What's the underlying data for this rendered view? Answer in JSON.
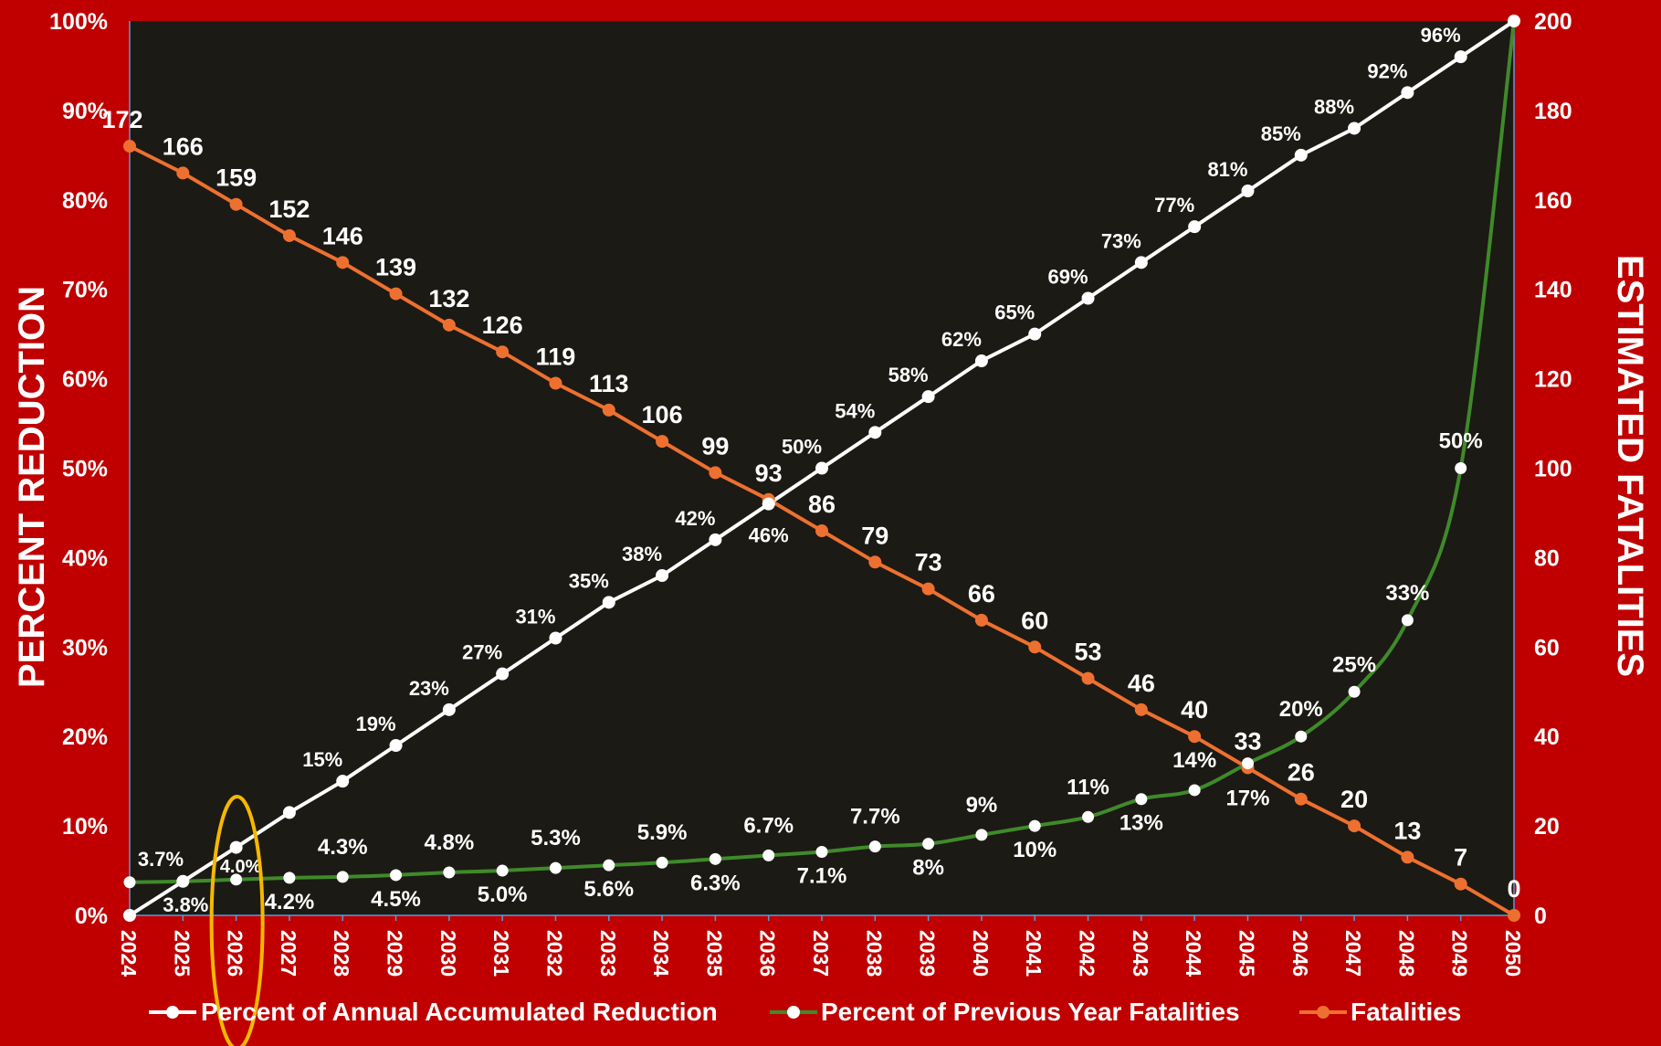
{
  "colors": {
    "background": "#c00000",
    "plot_area": "#1c1a14",
    "accumulated": "#ffffff",
    "previous": "#3f8a2a",
    "fatalities": "#ee7030",
    "highlight": "#f5b800",
    "axis_text": "#ffffff"
  },
  "chart_data": {
    "type": "line",
    "title": "",
    "x": [
      2024,
      2025,
      2026,
      2027,
      2028,
      2029,
      2030,
      2031,
      2032,
      2033,
      2034,
      2035,
      2036,
      2037,
      2038,
      2039,
      2040,
      2041,
      2042,
      2043,
      2044,
      2045,
      2046,
      2047,
      2048,
      2049,
      2050
    ],
    "y_left": {
      "label": "PERCENT REDUCTION",
      "range": [
        0,
        100
      ],
      "ticks": [
        "0%",
        "10%",
        "20%",
        "30%",
        "40%",
        "50%",
        "60%",
        "70%",
        "80%",
        "90%",
        "100%"
      ]
    },
    "y_right": {
      "label": "ESTIMATED FATALITIES",
      "range": [
        0,
        200
      ],
      "ticks": [
        "0",
        "20",
        "40",
        "60",
        "80",
        "100",
        "120",
        "140",
        "160",
        "180",
        "200"
      ]
    },
    "series": [
      {
        "name": "Percent of Annual Accumulated Reduction",
        "axis": "left",
        "color": "#ffffff",
        "values": [
          0,
          3.8,
          7.6,
          11.5,
          15,
          19,
          23,
          27,
          31,
          35,
          38,
          42,
          46,
          50,
          54,
          58,
          62,
          65,
          69,
          73,
          77,
          81,
          85,
          88,
          92,
          96,
          100
        ],
        "labels": [
          "",
          "3.8%",
          "",
          "",
          "15%",
          "19%",
          "23%",
          "27%",
          "31%",
          "35%",
          "38%",
          "42%",
          "46%",
          "50%",
          "54%",
          "58%",
          "62%",
          "65%",
          "69%",
          "73%",
          "77%",
          "81%",
          "85%",
          "88%",
          "92%",
          "96%",
          ""
        ]
      },
      {
        "name": "Percent of Previous Year Fatalities",
        "axis": "left",
        "color": "#3f8a2a",
        "values": [
          3.7,
          3.8,
          4.0,
          4.2,
          4.3,
          4.5,
          4.8,
          5.0,
          5.3,
          5.6,
          5.9,
          6.3,
          6.7,
          7.1,
          7.7,
          8,
          9,
          10,
          11,
          13,
          14,
          17,
          20,
          25,
          33,
          50,
          100
        ],
        "labels": [
          "3.7%",
          "",
          "4.0%",
          "4.2%",
          "4.3%",
          "4.5%",
          "4.8%",
          "5.0%",
          "5.3%",
          "5.6%",
          "5.9%",
          "6.3%",
          "6.7%",
          "7.1%",
          "7.7%",
          "8%",
          "9%",
          "10%",
          "11%",
          "13%",
          "14%",
          "17%",
          "20%",
          "25%",
          "33%",
          "50%",
          ""
        ]
      },
      {
        "name": "Fatalities",
        "axis": "right",
        "color": "#ee7030",
        "values": [
          172,
          166,
          159,
          152,
          146,
          139,
          132,
          126,
          119,
          113,
          106,
          99,
          93,
          86,
          79,
          73,
          66,
          60,
          53,
          46,
          40,
          33,
          26,
          20,
          13,
          7,
          0
        ],
        "labels": [
          "172",
          "166",
          "159",
          "152",
          "146",
          "139",
          "132",
          "126",
          "119",
          "113",
          "106",
          "99",
          "93",
          "86",
          "79",
          "73",
          "66",
          "60",
          "53",
          "46",
          "40",
          "33",
          "26",
          "20",
          "13",
          "7",
          "0"
        ]
      }
    ],
    "highlight_year": 2026,
    "legend_position": "bottom",
    "grid": false
  }
}
